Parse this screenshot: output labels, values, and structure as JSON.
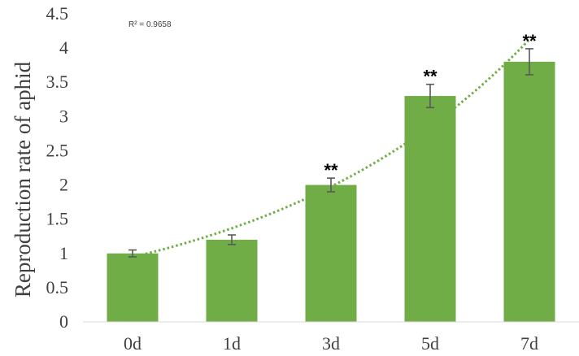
{
  "chart_data": {
    "type": "bar",
    "categories": [
      "0d",
      "1d",
      "3d",
      "5d",
      "7d"
    ],
    "values": [
      1.0,
      1.2,
      2.0,
      3.3,
      3.8
    ],
    "errors": [
      0.05,
      0.07,
      0.1,
      0.17,
      0.19
    ],
    "significance": [
      "",
      "",
      "**",
      "**",
      "**"
    ],
    "title": "",
    "xlabel": "",
    "ylabel": "Reproduction rate of aphid",
    "ylim": [
      0,
      4.5
    ],
    "yticks": [
      "0",
      "0.5",
      "1",
      "1.5",
      "2",
      "2.5",
      "3",
      "3.5",
      "4",
      "4.5"
    ],
    "trendline": {
      "type": "exponential",
      "style": "dotted",
      "r_squared_label": "R² = 0.9658"
    },
    "grid": false,
    "legend": "none",
    "colors": {
      "bar": "#70ad47",
      "trendline": "#70ad47",
      "error_bar": "#595959",
      "axis": "#d9d9d9"
    }
  }
}
